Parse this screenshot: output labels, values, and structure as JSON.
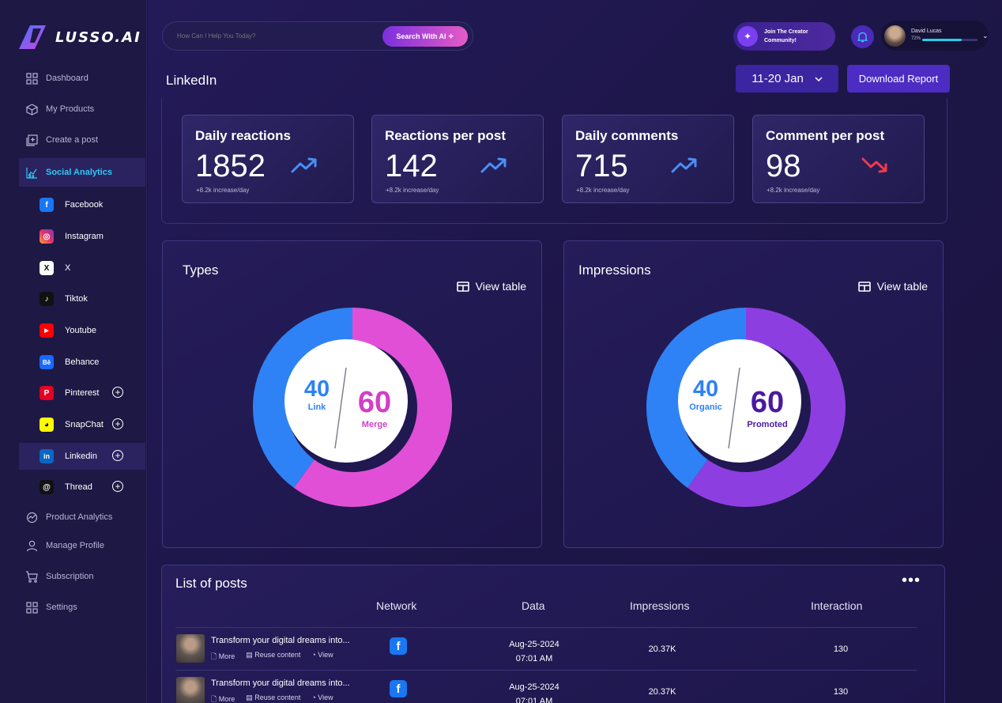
{
  "brand": {
    "name": "LUSSO.AI"
  },
  "nav": {
    "dashboard": "Dashboard",
    "products": "My Products",
    "create": "Create a post",
    "social": "Social Analytics",
    "product_analytics": "Product Analytics",
    "manage": "Manage Profile",
    "subscription": "Subscription",
    "settings": "Settings"
  },
  "social_items": [
    {
      "label": "Facebook",
      "glyph": "f",
      "color": "#1877f2"
    },
    {
      "label": "Instagram",
      "glyph": "◎",
      "color": "#e1306c"
    },
    {
      "label": "X",
      "glyph": "X",
      "color": "#ffffff"
    },
    {
      "label": "Tiktok",
      "glyph": "♪",
      "color": "#111111"
    },
    {
      "label": "Youtube",
      "glyph": "▶",
      "color": "#ff0000"
    },
    {
      "label": "Behance",
      "glyph": "Bē",
      "color": "#1769ff"
    },
    {
      "label": "Pinterest",
      "glyph": "P",
      "color": "#e60023"
    },
    {
      "label": "SnapChat",
      "glyph": "◕",
      "color": "#fffc00"
    },
    {
      "label": "Linkedin",
      "glyph": "in",
      "color": "#0a66c2"
    },
    {
      "label": "Thread",
      "glyph": "@",
      "color": "#111111"
    }
  ],
  "search": {
    "placeholder": "How Can I Help You Today?",
    "button": "Search With AI ✧"
  },
  "header": {
    "join": "Join The Creator Community!",
    "user_name": "David Lucas",
    "user_progress_pct": "72%",
    "progress": 0.72
  },
  "page": {
    "title": "LinkedIn",
    "date_range": "11-20 Jan",
    "download": "Download Report"
  },
  "stats": [
    {
      "label": "Daily reactions",
      "value": "1852",
      "sub": "+8.2k increase/day",
      "trend": "up"
    },
    {
      "label": "Reactions per post",
      "value": "142",
      "sub": "+8.2k increase/day",
      "trend": "up"
    },
    {
      "label": "Daily comments",
      "value": "715",
      "sub": "+8.2k increase/day",
      "trend": "up"
    },
    {
      "label": "Comment per post",
      "value": "98",
      "sub": "+8.2k increase/day",
      "trend": "down"
    }
  ],
  "view_table": "View table",
  "chart_data": [
    {
      "type": "pie",
      "title": "Types",
      "categories": [
        "Link",
        "Merge"
      ],
      "values": [
        40,
        60
      ],
      "colors": [
        "#2e82f5",
        "#e14fd6"
      ]
    },
    {
      "type": "pie",
      "title": "Impressions",
      "categories": [
        "Organic",
        "Promoted"
      ],
      "values": [
        40,
        60
      ],
      "colors": [
        "#2e82f5",
        "#8d3ee0"
      ]
    }
  ],
  "posts": {
    "title": "List of posts",
    "columns": [
      "Network",
      "Data",
      "Impressions",
      "Interaction"
    ],
    "actions": [
      "More",
      "Reuse content",
      "View"
    ],
    "rows": [
      {
        "title": "Transform your digital dreams into...",
        "date": "Aug-25-2024",
        "time": "07:01 AM",
        "impressions": "20.37K",
        "interaction": "130"
      },
      {
        "title": "Transform your digital dreams into...",
        "date": "Aug-25-2024",
        "time": "07:01 AM",
        "impressions": "20.37K",
        "interaction": "130"
      }
    ]
  }
}
